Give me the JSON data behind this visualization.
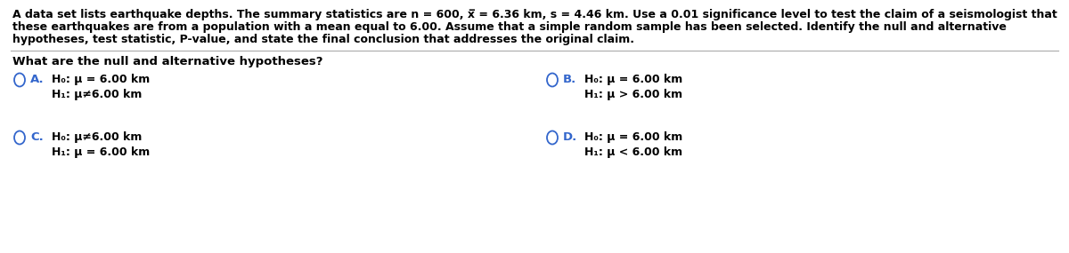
{
  "bg_color": "#ffffff",
  "text_color": "#000000",
  "blue_color": "#3366cc",
  "para_line1": "A data set lists earthquake depths. The summary statistics are n = 600, x̅ = 6.36 km, s = 4.46 km. Use a 0.01 significance level to test the claim of a seismologist that",
  "para_line2": "these earthquakes are from a population with a mean equal to 6.00. Assume that a simple random sample has been selected. Identify the null and alternative",
  "para_line3": "hypotheses, test statistic, P-value, and state the final conclusion that addresses the original claim.",
  "question": "What are the null and alternative hypotheses?",
  "A_line1": "H₀: μ = 6.00 km",
  "A_line2": "H₁: μ≠6.00 km",
  "B_line1": "H₀: μ = 6.00 km",
  "B_line2": "H₁: μ > 6.00 km",
  "C_line1": "H₀: μ≠6.00 km",
  "C_line2": "H₁: μ = 6.00 km",
  "D_line1": "H₀: μ = 6.00 km",
  "D_line2": "H₁: μ < 6.00 km",
  "para_fontsize": 9.0,
  "question_fontsize": 9.5,
  "option_letter_fontsize": 9.5,
  "option_text_fontsize": 9.0
}
